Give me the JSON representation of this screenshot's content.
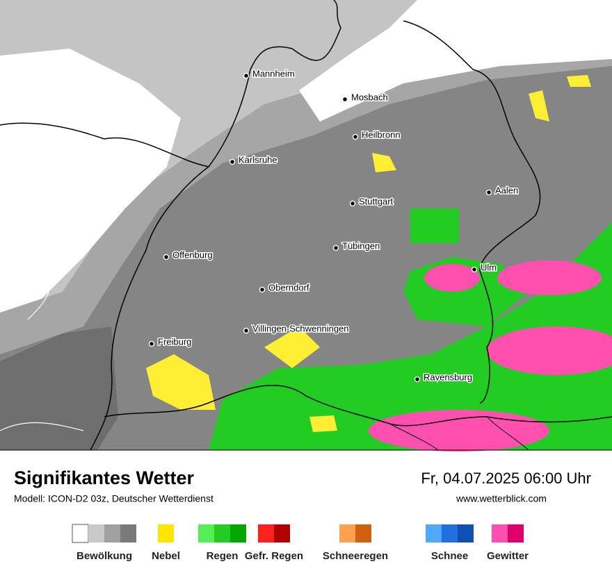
{
  "header": {
    "title": "Signifikantes Wetter",
    "subtitle": "Modell: ICON-D2 03z, Deutscher Wetterdienst",
    "date": "Fr, 04.07.2025 06:00 Uhr",
    "website": "www.wetterblick.com"
  },
  "cities": [
    "Mannheim",
    "Mosbach",
    "Heilbronn",
    "Karlsruhe",
    "Aalen",
    "Stuttgart",
    "Tübingen",
    "Offenburg",
    "Ulm",
    "Oberndorf",
    "Villingen-Schwenningen",
    "Freiburg",
    "Ravensburg"
  ],
  "legend": [
    {
      "label": "Bewölkung",
      "colors": [
        "#ffffff",
        "#c8c8c8",
        "#a0a0a0",
        "#7a7a7a"
      ]
    },
    {
      "label": "Nebel",
      "colors": [
        "#ffe600"
      ]
    },
    {
      "label": "Regen",
      "colors": [
        "#55ee55",
        "#22cc22",
        "#00a800"
      ]
    },
    {
      "label": "Gefr. Regen",
      "colors": [
        "#ff2020",
        "#b00000"
      ]
    },
    {
      "label": "Schneeregen",
      "colors": [
        "#ffa050",
        "#d06010"
      ]
    },
    {
      "label": "Schnee",
      "colors": [
        "#50a8ff",
        "#2070e0",
        "#1050b0"
      ]
    },
    {
      "label": "Gewitter",
      "colors": [
        "#ff50b0",
        "#e0006a"
      ]
    }
  ]
}
